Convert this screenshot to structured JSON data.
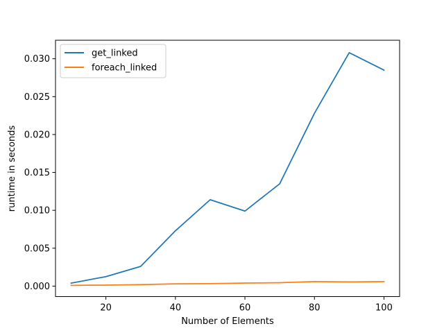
{
  "chart_data": {
    "type": "line",
    "title": "",
    "xlabel": "Number of Elements",
    "ylabel": "runtime in seconds",
    "x": [
      10,
      20,
      30,
      40,
      50,
      60,
      70,
      80,
      90,
      100
    ],
    "xlim": [
      5.5,
      104.5
    ],
    "ylim": [
      -0.00138,
      0.03244
    ],
    "xticks": [
      20,
      40,
      60,
      80,
      100
    ],
    "xtick_labels": [
      "20",
      "40",
      "60",
      "80",
      "100"
    ],
    "yticks": [
      0.0,
      0.005,
      0.01,
      0.015,
      0.02,
      0.025,
      0.03
    ],
    "ytick_labels": [
      "0.000",
      "0.005",
      "0.010",
      "0.015",
      "0.020",
      "0.025",
      "0.030"
    ],
    "grid": false,
    "legend_position": "upper-left",
    "series": [
      {
        "name": "get_linked",
        "color": "#1f77b4",
        "values": [
          0.0004,
          0.00125,
          0.0026,
          0.0073,
          0.0114,
          0.0099,
          0.0135,
          0.0228,
          0.0308,
          0.0285
        ]
      },
      {
        "name": "foreach_linked",
        "color": "#ff7f0e",
        "values": [
          0.0001,
          0.00013,
          0.0002,
          0.0003,
          0.00033,
          0.0004,
          0.00045,
          0.0006,
          0.00055,
          0.0006
        ]
      }
    ]
  }
}
